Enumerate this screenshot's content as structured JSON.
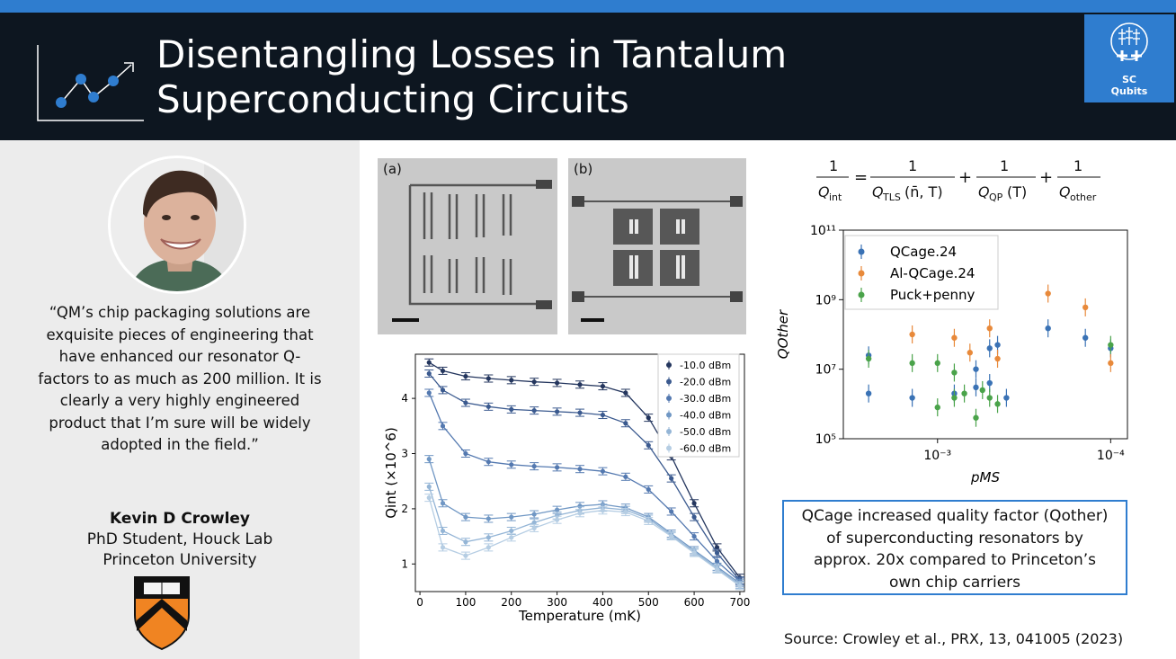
{
  "header": {
    "title_line1": "Disentangling Losses in Tantalum",
    "title_line2": "Superconducting Circuits",
    "logo_line1": "SC",
    "logo_line2": "Qubits"
  },
  "testimonial": {
    "quote_lines": [
      "“QM’s chip packaging solutions are",
      "exquisite pieces of engineering that",
      "have enhanced our resonator Q-",
      "factors to as much as 200 million. It is",
      "clearly a very highly engineered",
      "product that I’m sure will be widely",
      "adopted in the field.”"
    ],
    "name": "Kevin D Crowley",
    "role": "PhD Student, Houck Lab",
    "affiliation": "Princeton University"
  },
  "figures": {
    "panel_a_label": "(a)",
    "panel_b_label": "(b)"
  },
  "callout": {
    "lines": [
      "QCage increased quality factor (Qother)",
      "of superconducting resonators by",
      "approx. 20x compared to Princeton’s",
      "own chip carriers"
    ]
  },
  "source": "Source: Crowley et al., PRX, 13, 041005 (2023)",
  "colors": {
    "accent": "#2f7dcf",
    "header_bg": "#0d1620",
    "left_bg": "#ececec"
  },
  "chart_data": [
    {
      "type": "line",
      "xlabel": "Temperature (mK)",
      "ylabel": "Qint (×10^6)",
      "xlim": [
        -10,
        710
      ],
      "ylim": [
        0.5,
        4.8
      ],
      "xticks": [
        0,
        100,
        200,
        300,
        400,
        500,
        600,
        700
      ],
      "yticks": [
        1,
        2,
        3,
        4
      ],
      "legend_position": "top-right",
      "x": [
        20,
        50,
        100,
        150,
        200,
        250,
        300,
        350,
        400,
        450,
        500,
        550,
        600,
        650,
        700
      ],
      "series": [
        {
          "name": "-10.0 dBm",
          "color": "#24365e",
          "values": [
            4.65,
            4.5,
            4.4,
            4.36,
            4.33,
            4.3,
            4.28,
            4.25,
            4.22,
            4.1,
            3.65,
            2.95,
            2.1,
            1.3,
            0.75
          ]
        },
        {
          "name": "-20.0 dBm",
          "color": "#3b5a8f",
          "values": [
            4.45,
            4.15,
            3.92,
            3.85,
            3.8,
            3.78,
            3.76,
            3.74,
            3.7,
            3.55,
            3.15,
            2.55,
            1.85,
            1.2,
            0.7
          ]
        },
        {
          "name": "-30.0 dBm",
          "color": "#5479b0",
          "values": [
            4.1,
            3.5,
            3.0,
            2.85,
            2.8,
            2.77,
            2.75,
            2.72,
            2.68,
            2.58,
            2.35,
            1.95,
            1.5,
            1.05,
            0.68
          ]
        },
        {
          "name": "-40.0 dBm",
          "color": "#7097c4",
          "values": [
            2.9,
            2.1,
            1.85,
            1.82,
            1.85,
            1.9,
            1.98,
            2.05,
            2.08,
            2.02,
            1.85,
            1.55,
            1.25,
            0.95,
            0.65
          ]
        },
        {
          "name": "-50.0 dBm",
          "color": "#94b5d6",
          "values": [
            2.4,
            1.6,
            1.4,
            1.48,
            1.6,
            1.75,
            1.88,
            1.97,
            2.02,
            1.98,
            1.82,
            1.52,
            1.22,
            0.92,
            0.62
          ]
        },
        {
          "name": "-60.0 dBm",
          "color": "#b5cde3",
          "values": [
            2.2,
            1.3,
            1.15,
            1.3,
            1.48,
            1.65,
            1.8,
            1.92,
            1.97,
            1.94,
            1.78,
            1.5,
            1.2,
            0.9,
            0.6
          ]
        }
      ]
    },
    {
      "type": "scatter",
      "xlabel": "pMS",
      "ylabel": "QOther",
      "x_scale": "log-reversed",
      "y_scale": "log",
      "xlim": [
        0.0035,
        8e-05
      ],
      "ylim": [
        100000,
        100000000000
      ],
      "xtick_labels": [
        "10⁻³",
        "10⁻⁴"
      ],
      "ytick_labels": [
        "10⁵",
        "10⁷",
        "10⁹",
        "10¹¹"
      ],
      "legend_position": "top-left",
      "series": [
        {
          "name": "QCage.24",
          "color": "#3a72b5",
          "points": [
            [
              0.0025,
              2000000
            ],
            [
              0.0025,
              25000000
            ],
            [
              0.0014,
              1500000
            ],
            [
              0.0008,
              2000000
            ],
            [
              0.0006,
              10000000
            ],
            [
              0.0006,
              3000000
            ],
            [
              0.0005,
              40000000
            ],
            [
              0.0005,
              4000000
            ],
            [
              0.00045,
              50000000
            ],
            [
              0.0004,
              1500000
            ],
            [
              0.00023,
              150000000
            ],
            [
              0.00014,
              80000000
            ],
            [
              0.0001,
              40000000
            ]
          ]
        },
        {
          "name": "Al-QCage.24",
          "color": "#e8893a",
          "points": [
            [
              0.0014,
              100000000
            ],
            [
              0.0008,
              80000000
            ],
            [
              0.00065,
              30000000
            ],
            [
              0.0005,
              150000000
            ],
            [
              0.00045,
              20000000
            ],
            [
              0.00023,
              1500000000
            ],
            [
              0.00014,
              600000000
            ],
            [
              0.0001,
              15000000
            ]
          ]
        },
        {
          "name": "Puck+penny",
          "color": "#4aa34a",
          "points": [
            [
              0.0025,
              20000000
            ],
            [
              0.0014,
              15000000
            ],
            [
              0.001,
              15000000
            ],
            [
              0.001,
              800000
            ],
            [
              0.0008,
              8000000
            ],
            [
              0.0008,
              1500000
            ],
            [
              0.0007,
              2000000
            ],
            [
              0.0006,
              400000
            ],
            [
              0.00055,
              2500000
            ],
            [
              0.0005,
              1500000
            ],
            [
              0.00045,
              1000000
            ],
            [
              0.0001,
              50000000
            ]
          ]
        }
      ]
    }
  ]
}
